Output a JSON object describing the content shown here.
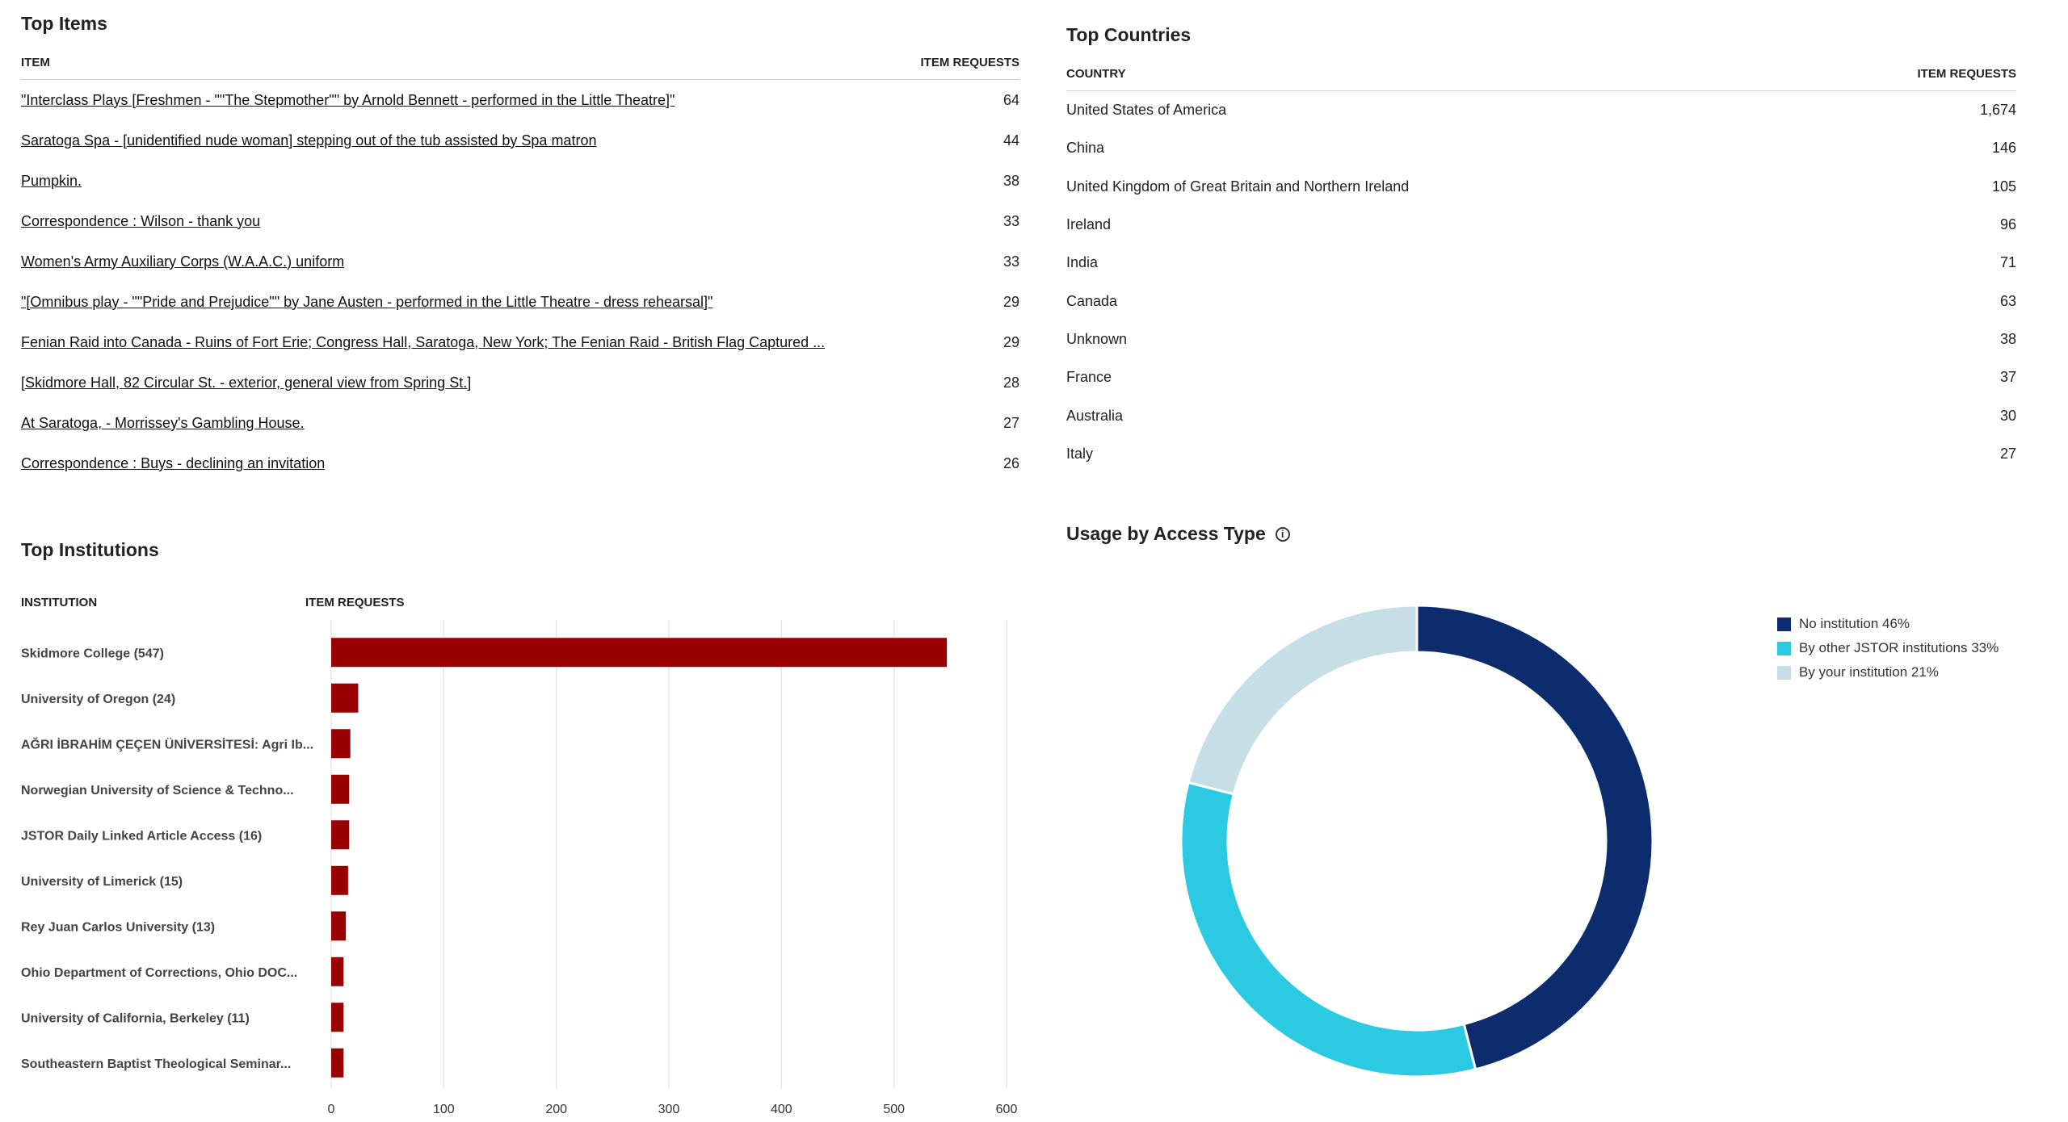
{
  "top_items": {
    "title": "Top Items",
    "col_item": "ITEM",
    "col_requests": "ITEM REQUESTS",
    "rows": [
      {
        "label": "\"Interclass Plays [Freshmen - \"\"The Stepmother\"\" by Arnold Bennett - performed in the Little Theatre]\"",
        "value": "64"
      },
      {
        "label": "Saratoga Spa - [unidentified nude woman] stepping out of the tub assisted by Spa matron",
        "value": "44"
      },
      {
        "label": "Pumpkin.",
        "value": "38"
      },
      {
        "label": "Correspondence : Wilson - thank you",
        "value": "33"
      },
      {
        "label": "Women's Army Auxiliary Corps (W.A.A.C.) uniform",
        "value": "33"
      },
      {
        "label": "\"[Omnibus play - \"\"Pride and Prejudice\"\" by Jane Austen - performed in the Little Theatre - dress rehearsal]\"",
        "value": "29"
      },
      {
        "label": "Fenian Raid into Canada - Ruins of Fort Erie; Congress Hall, Saratoga, New York; The Fenian Raid - British Flag Captured ...",
        "value": "29"
      },
      {
        "label": "[Skidmore Hall, 82 Circular St. - exterior, general view from Spring St.]",
        "value": "28"
      },
      {
        "label": "At Saratoga, - Morrissey's Gambling House.",
        "value": "27"
      },
      {
        "label": "Correspondence : Buys - declining an invitation",
        "value": "26"
      }
    ]
  },
  "top_countries": {
    "title": "Top Countries",
    "col_country": "COUNTRY",
    "col_requests": "ITEM REQUESTS",
    "rows": [
      {
        "label": "United States of America",
        "value": "1,674"
      },
      {
        "label": "China",
        "value": "146"
      },
      {
        "label": "United Kingdom of Great Britain and Northern Ireland",
        "value": "105"
      },
      {
        "label": "Ireland",
        "value": "96"
      },
      {
        "label": "India",
        "value": "71"
      },
      {
        "label": "Canada",
        "value": "63"
      },
      {
        "label": "Unknown",
        "value": "38"
      },
      {
        "label": "France",
        "value": "37"
      },
      {
        "label": "Australia",
        "value": "30"
      },
      {
        "label": "Italy",
        "value": "27"
      }
    ]
  },
  "top_institutions": {
    "title": "Top Institutions",
    "col_institution": "INSTITUTION",
    "col_requests": "ITEM REQUESTS"
  },
  "usage": {
    "title": "Usage by Access Type"
  },
  "chart_data": [
    {
      "type": "bar",
      "orientation": "horizontal",
      "categories": [
        "Skidmore College (547)",
        "University of Oregon (24)",
        "AĞRI İBRAHİM ÇEÇEN ÜNİVERSİTESİ: Agri Ib...",
        "Norwegian University of Science & Techno...",
        "JSTOR Daily Linked Article Access (16)",
        "University of Limerick (15)",
        "Rey Juan Carlos University (13)",
        "Ohio Department of Corrections, Ohio DOC...",
        "University of California, Berkeley (11)",
        "Southeastern Baptist Theological Seminar..."
      ],
      "values": [
        547,
        24,
        17,
        16,
        16,
        15,
        13,
        11,
        11,
        11
      ],
      "xlim": [
        0,
        600
      ],
      "xticks": [
        "0",
        "100",
        "200",
        "300",
        "400",
        "500",
        "600"
      ],
      "grid": true,
      "color": "#990000"
    },
    {
      "type": "pie",
      "donut": true,
      "labels": [
        "No institution 46%",
        "By other JSTOR institutions 33%",
        "By your institution 21%"
      ],
      "values": [
        46,
        33,
        21
      ],
      "colors": [
        "#0c2c6e",
        "#2bc9e2",
        "#c6dfe6"
      ],
      "legend": "right"
    }
  ]
}
